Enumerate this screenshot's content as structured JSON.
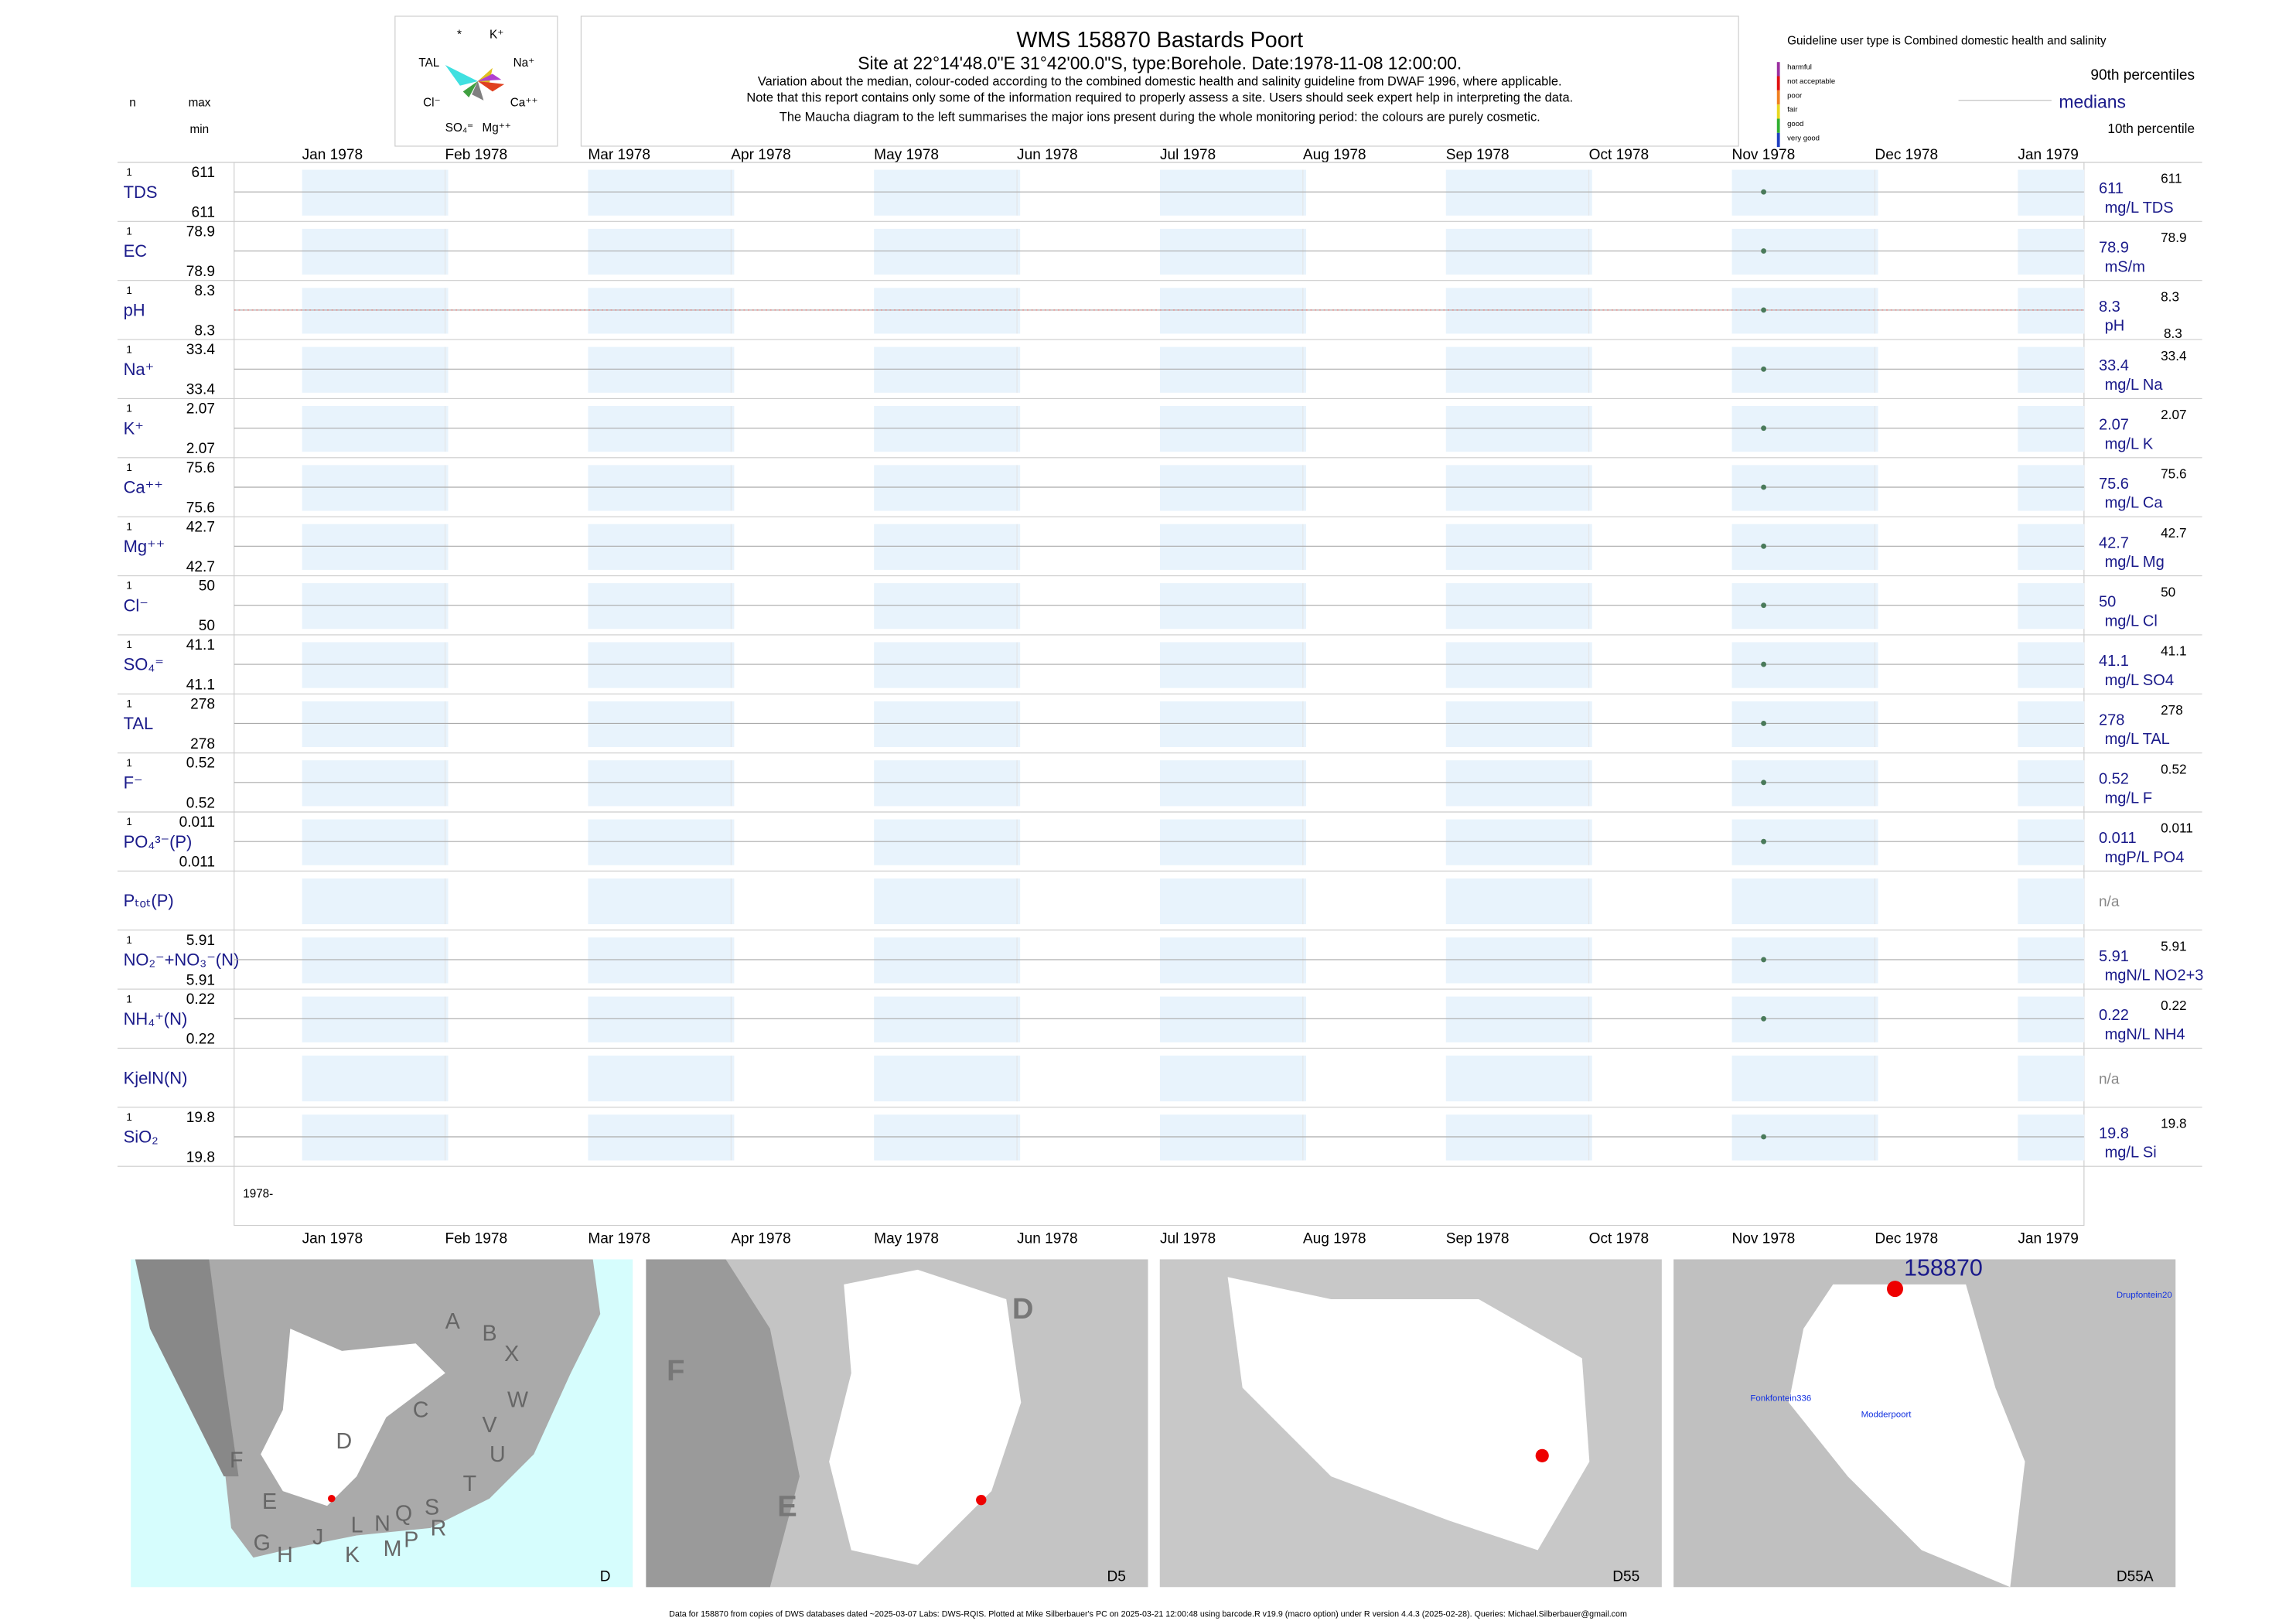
{
  "header": {
    "title": "WMS 158870  Bastards Poort",
    "subtitle": "Site at 22°14'48.0\"E 31°42'00.0\"S, type:Borehole. Date:1978-11-08 12:00:00.",
    "notes": [
      "Variation about the median,  colour-coded according to the combined domestic health and salinity guideline from DWAF 1996, where applicable.",
      "Note that this report contains only some of the information required to properly assess a site. Users should seek expert help in interpreting the data.",
      "The Maucha diagram to the left summarises the major ions present during the whole monitoring period: the colours are purely cosmetic."
    ]
  },
  "maucha": {
    "labels": [
      "*",
      "K⁺",
      "TAL",
      "Na⁺",
      "Cl⁻",
      "Ca⁺⁺",
      "SO₄⁼",
      "Mg⁺⁺"
    ]
  },
  "columns": {
    "n": "n",
    "max": "max",
    "min": "min"
  },
  "legend": {
    "title": "Guideline user type is Combined domestic health and salinity",
    "levels": [
      {
        "label": "harmful",
        "color": "#9b30a0"
      },
      {
        "label": "not acceptable",
        "color": "#e01010"
      },
      {
        "label": "poor",
        "color": "#f08020"
      },
      {
        "label": "fair",
        "color": "#e8d820"
      },
      {
        "label": "good",
        "color": "#30b030"
      },
      {
        "label": "very good",
        "color": "#2040c0"
      }
    ],
    "p90": "90th percentiles",
    "medians": "medians",
    "p10": "10th percentile"
  },
  "months": [
    "Jan 1978",
    "Feb 1978",
    "Mar 1978",
    "Apr 1978",
    "May 1978",
    "Jun 1978",
    "Jul 1978",
    "Aug 1978",
    "Sep 1978",
    "Oct 1978",
    "Nov 1978",
    "Dec 1978",
    "Jan 1979"
  ],
  "year_label": "1978-",
  "rows": [
    {
      "label": "TDS",
      "n": 1,
      "max": 611,
      "min": 611,
      "median": 611,
      "unit": "mg/L TDS",
      "p90": 611
    },
    {
      "label": "EC",
      "n": 1,
      "max": 78.9,
      "min": 78.9,
      "median": 78.9,
      "unit": "mS/m",
      "p90": 78.9
    },
    {
      "label": "pH",
      "n": 1,
      "max": 8.3,
      "min": 8.3,
      "median": 8.3,
      "unit": "pH",
      "p90": 8.3,
      "p10": 8.3
    },
    {
      "label": "Na⁺",
      "n": 1,
      "max": 33.4,
      "min": 33.4,
      "median": 33.4,
      "unit": "mg/L Na",
      "p90": 33.4
    },
    {
      "label": "K⁺",
      "n": 1,
      "max": 2.07,
      "min": 2.07,
      "median": 2.07,
      "unit": "mg/L K",
      "p90": 2.07
    },
    {
      "label": "Ca⁺⁺",
      "n": 1,
      "max": 75.6,
      "min": 75.6,
      "median": 75.6,
      "unit": "mg/L Ca",
      "p90": 75.6
    },
    {
      "label": "Mg⁺⁺",
      "n": 1,
      "max": 42.7,
      "min": 42.7,
      "median": 42.7,
      "unit": "mg/L Mg",
      "p90": 42.7
    },
    {
      "label": "Cl⁻",
      "n": 1,
      "max": 50,
      "min": 50,
      "median": 50,
      "unit": "mg/L Cl",
      "p90": 50
    },
    {
      "label": "SO₄⁼",
      "n": 1,
      "max": 41.1,
      "min": 41.1,
      "median": 41.1,
      "unit": "mg/L SO4",
      "p90": 41.1
    },
    {
      "label": "TAL",
      "n": 1,
      "max": 278,
      "min": 278,
      "median": 278,
      "unit": "mg/L TAL",
      "p90": 278
    },
    {
      "label": "F⁻",
      "n": 1,
      "max": 0.52,
      "min": 0.52,
      "median": 0.52,
      "unit": "mg/L F",
      "p90": 0.52
    },
    {
      "label": "PO₄³⁻(P)",
      "n": 1,
      "max": 0.011,
      "min": 0.011,
      "median": 0.011,
      "unit": "mgP/L PO4",
      "p90": 0.011
    },
    {
      "label": "Pₜₒₜ(P)",
      "status": "n/a"
    },
    {
      "label": "NO₂⁻+NO₃⁻(N)",
      "n": 1,
      "max": 5.91,
      "min": 5.91,
      "median": 5.91,
      "unit": "mgN/L NO2+3",
      "p90": 5.91
    },
    {
      "label": "NH₄⁺(N)",
      "n": 1,
      "max": 0.22,
      "min": 0.22,
      "median": 0.22,
      "unit": "mgN/L NH4",
      "p90": 0.22
    },
    {
      "label": "KjelN(N)",
      "status": "n/a"
    },
    {
      "label": "SiO₂",
      "n": 1,
      "max": 19.8,
      "min": 19.8,
      "median": 19.8,
      "unit": "mg/L Si",
      "p90": 19.8
    }
  ],
  "maps": {
    "panels": [
      "D",
      "D5",
      "D55",
      "D55A"
    ],
    "regions": [
      "A",
      "B",
      "X",
      "C",
      "W",
      "D",
      "V",
      "U",
      "T",
      "F",
      "E",
      "J",
      "L",
      "N",
      "Q",
      "S",
      "R",
      "G",
      "H",
      "K",
      "M",
      "P"
    ],
    "d5_regions": [
      "D",
      "F",
      "E"
    ],
    "site": "158870",
    "places": [
      "Drupfontein20",
      "Fonkfontein336",
      "Modderpoort"
    ]
  },
  "footer": "Data for 158870 from copies of DWS databases dated ~2025-03-07 Labs: DWS-RQIS. Plotted at Mike Silberbauer's PC on 2025-03-21 12:00:48 using barcode.R v19.9 (macro option) under R version 4.4.3 (2025-02-28). Queries: Michael.Silberbauer@gmail.com"
}
